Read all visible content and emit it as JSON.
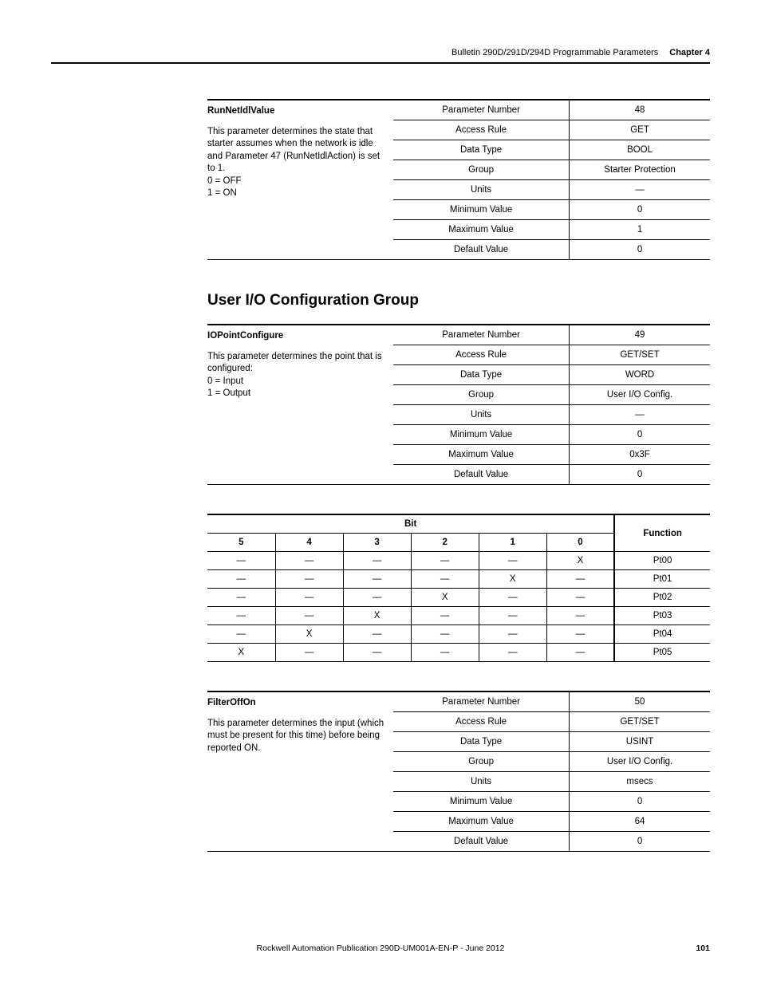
{
  "header": {
    "breadcrumb": "Bulletin 290D/291D/294D Programmable Parameters",
    "chapter": "Chapter 4"
  },
  "param48": {
    "name": "RunNetIdlValue",
    "desc": "This parameter determines the state that starter assumes when the network is idle and Parameter 47 (RunNetIdlAction) is set to 1.\n0 = OFF\n1 = ON",
    "rows": [
      {
        "label": "Parameter Number",
        "value": "48"
      },
      {
        "label": "Access Rule",
        "value": "GET"
      },
      {
        "label": "Data Type",
        "value": "BOOL"
      },
      {
        "label": "Group",
        "value": "Starter Protection"
      },
      {
        "label": "Units",
        "value": "—"
      },
      {
        "label": "Minimum Value",
        "value": "0"
      },
      {
        "label": "Maximum Value",
        "value": "1"
      },
      {
        "label": "Default Value",
        "value": "0"
      }
    ]
  },
  "section_title": "User I/O Configuration Group",
  "param49": {
    "name": "IOPointConfigure",
    "desc": "This parameter determines the point that is configured:\n0 = Input\n1 = Output",
    "rows": [
      {
        "label": "Parameter Number",
        "value": "49"
      },
      {
        "label": "Access Rule",
        "value": "GET/SET"
      },
      {
        "label": "Data Type",
        "value": "WORD"
      },
      {
        "label": "Group",
        "value": "User I/O Config."
      },
      {
        "label": "Units",
        "value": "—"
      },
      {
        "label": "Minimum Value",
        "value": "0"
      },
      {
        "label": "Maximum Value",
        "value": "0x3F"
      },
      {
        "label": "Default Value",
        "value": "0"
      }
    ]
  },
  "bit_table": {
    "bit_header": "Bit",
    "func_header": "Function",
    "cols": [
      "5",
      "4",
      "3",
      "2",
      "1",
      "0"
    ],
    "rows": [
      {
        "b": [
          "—",
          "—",
          "—",
          "—",
          "—",
          "X"
        ],
        "f": "Pt00"
      },
      {
        "b": [
          "—",
          "—",
          "—",
          "—",
          "X",
          "—"
        ],
        "f": "Pt01"
      },
      {
        "b": [
          "—",
          "—",
          "—",
          "X",
          "—",
          "—"
        ],
        "f": "Pt02"
      },
      {
        "b": [
          "—",
          "—",
          "X",
          "—",
          "—",
          "—"
        ],
        "f": "Pt03"
      },
      {
        "b": [
          "—",
          "X",
          "—",
          "—",
          "—",
          "—"
        ],
        "f": "Pt04"
      },
      {
        "b": [
          "X",
          "—",
          "—",
          "—",
          "—",
          "—"
        ],
        "f": "Pt05"
      }
    ]
  },
  "param50": {
    "name": "FilterOffOn",
    "desc": "This parameter determines the input (which must be present for this time) before being reported ON.",
    "rows": [
      {
        "label": "Parameter Number",
        "value": "50"
      },
      {
        "label": "Access Rule",
        "value": "GET/SET"
      },
      {
        "label": "Data Type",
        "value": "USINT"
      },
      {
        "label": "Group",
        "value": "User I/O Config."
      },
      {
        "label": "Units",
        "value": "msecs"
      },
      {
        "label": "Minimum Value",
        "value": "0"
      },
      {
        "label": "Maximum Value",
        "value": "64"
      },
      {
        "label": "Default Value",
        "value": "0"
      }
    ]
  },
  "footer": {
    "pub": "Rockwell Automation Publication 290D-UM001A-EN-P - June 2012",
    "page": "101"
  }
}
